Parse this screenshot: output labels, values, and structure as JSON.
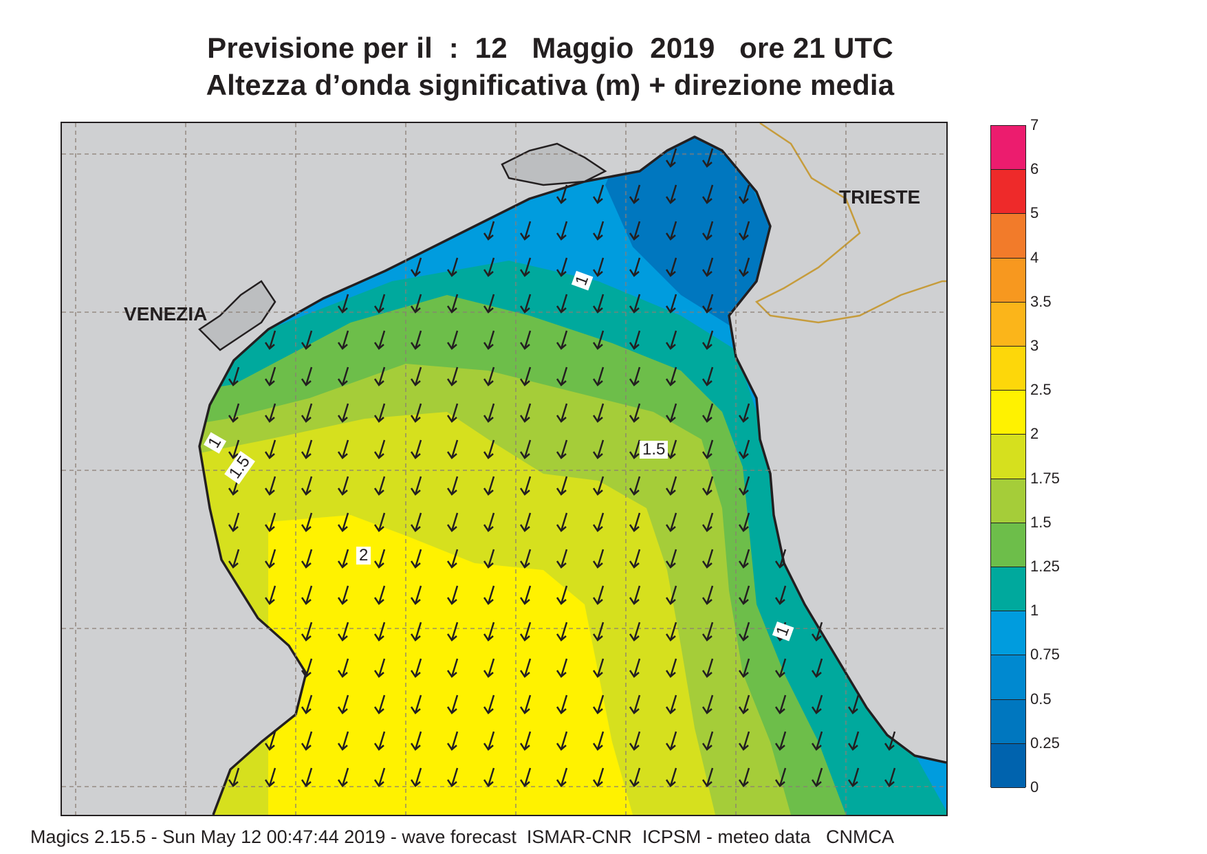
{
  "title": {
    "line1": "Previsione per il  :  12   Maggio  2019   ore 21 UTC",
    "line2": "Altezza d’onda significativa (m) + direzione media"
  },
  "cities": {
    "venezia": "VENEZIA",
    "trieste": "TRIESTE"
  },
  "contour_labels": [
    "1",
    "1",
    "1.5",
    "1.5",
    "2",
    "1"
  ],
  "colorbar": {
    "labels": [
      "7",
      "6",
      "5",
      "4",
      "3.5",
      "3",
      "2.5",
      "2",
      "1.75",
      "1.5",
      "1.25",
      "1",
      "0.75",
      "0.5",
      "0.25",
      "0"
    ],
    "colors": [
      "#ec1c6e",
      "#ee2a2a",
      "#f27b2a",
      "#f7981f",
      "#fbb51a",
      "#fdd70a",
      "#fff200",
      "#d6e01e",
      "#a5cd39",
      "#6dbe4a",
      "#00a99d",
      "#009cde",
      "#0089d0",
      "#0077bf",
      "#0063ae"
    ]
  },
  "map": {
    "land_color": "#cfd0d2",
    "coast_color": "#231f20",
    "border_color": "#c69c3c",
    "wave_direction": "south-southwest"
  },
  "footer": "Magics 2.15.5 - Sun May 12 00:47:44 2019 - wave forecast  ISMAR-CNR  ICPSM - meteo data   CNMCA"
}
